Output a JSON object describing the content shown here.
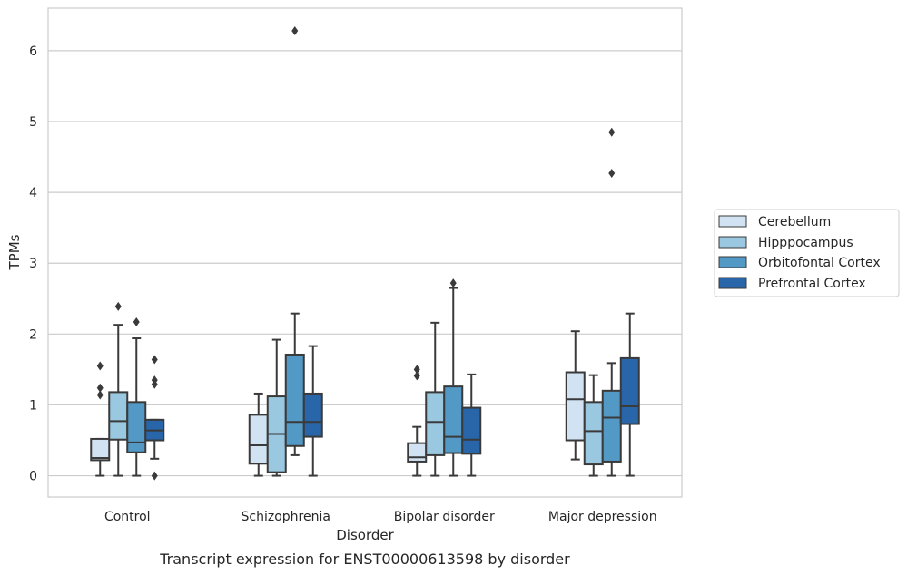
{
  "chart_data": {
    "type": "boxplot",
    "caption": "Transcript expression for ENST00000613598 by disorder",
    "xlabel": "Disorder",
    "ylabel": "TPMs",
    "ylim": [
      -0.3,
      6.6
    ],
    "yticks": [
      0,
      1,
      2,
      3,
      4,
      5,
      6
    ],
    "grid": "horizontal",
    "legend_position": "right",
    "edge_color": "#3a3a3a",
    "categories": [
      "Control",
      "Schizophrenia",
      "Bipolar disorder",
      "Major depression"
    ],
    "series": [
      {
        "name": "Cerebellum",
        "color": "#d1e3f3",
        "boxes": [
          {
            "whislo": 0.0,
            "q1": 0.22,
            "med": 0.25,
            "q3": 0.52,
            "whishi": 0.52,
            "fliers": [
              1.14,
              1.24,
              1.55
            ]
          },
          {
            "whislo": 0.0,
            "q1": 0.17,
            "med": 0.43,
            "q3": 0.86,
            "whishi": 1.16,
            "fliers": []
          },
          {
            "whislo": 0.0,
            "q1": 0.2,
            "med": 0.26,
            "q3": 0.46,
            "whishi": 0.69,
            "fliers": [
              1.41,
              1.5
            ]
          },
          {
            "whislo": 0.23,
            "q1": 0.5,
            "med": 1.08,
            "q3": 1.46,
            "whishi": 2.04,
            "fliers": []
          }
        ]
      },
      {
        "name": "Hipppocampus",
        "color": "#9ac8e0",
        "boxes": [
          {
            "whislo": 0.0,
            "q1": 0.51,
            "med": 0.77,
            "q3": 1.18,
            "whishi": 2.13,
            "fliers": [
              2.39
            ]
          },
          {
            "whislo": 0.0,
            "q1": 0.05,
            "med": 0.59,
            "q3": 1.12,
            "whishi": 1.92,
            "fliers": []
          },
          {
            "whislo": 0.0,
            "q1": 0.29,
            "med": 0.76,
            "q3": 1.18,
            "whishi": 2.16,
            "fliers": []
          },
          {
            "whislo": 0.0,
            "q1": 0.16,
            "med": 0.63,
            "q3": 1.04,
            "whishi": 1.42,
            "fliers": []
          }
        ]
      },
      {
        "name": "Orbitofontal Cortex",
        "color": "#5299c6",
        "boxes": [
          {
            "whislo": 0.0,
            "q1": 0.33,
            "med": 0.47,
            "q3": 1.04,
            "whishi": 1.94,
            "fliers": [
              2.17
            ]
          },
          {
            "whislo": 0.29,
            "q1": 0.42,
            "med": 0.76,
            "q3": 1.71,
            "whishi": 2.29,
            "fliers": [
              6.28
            ]
          },
          {
            "whislo": 0.0,
            "q1": 0.32,
            "med": 0.55,
            "q3": 1.26,
            "whishi": 2.65,
            "fliers": [
              2.72
            ]
          },
          {
            "whislo": 0.0,
            "q1": 0.2,
            "med": 0.82,
            "q3": 1.2,
            "whishi": 1.59,
            "fliers": [
              4.27,
              4.85
            ]
          }
        ]
      },
      {
        "name": "Prefrontal Cortex",
        "color": "#2866a9",
        "boxes": [
          {
            "whislo": 0.24,
            "q1": 0.5,
            "med": 0.64,
            "q3": 0.79,
            "whishi": 0.79,
            "fliers": [
              0.0,
              1.29,
              1.35,
              1.64
            ]
          },
          {
            "whislo": 0.0,
            "q1": 0.55,
            "med": 0.76,
            "q3": 1.16,
            "whishi": 1.83,
            "fliers": []
          },
          {
            "whislo": 0.0,
            "q1": 0.31,
            "med": 0.51,
            "q3": 0.96,
            "whishi": 1.43,
            "fliers": []
          },
          {
            "whislo": 0.0,
            "q1": 0.73,
            "med": 0.98,
            "q3": 1.66,
            "whishi": 2.29,
            "fliers": []
          }
        ]
      }
    ]
  }
}
